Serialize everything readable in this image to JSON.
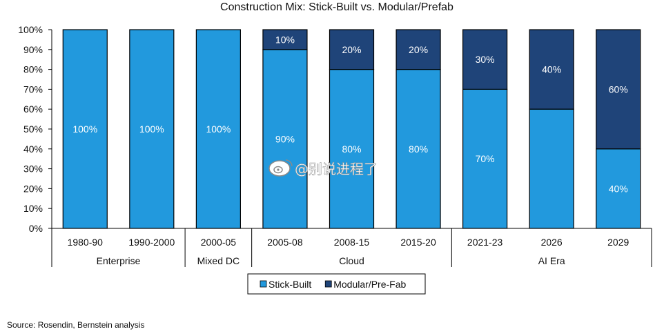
{
  "chart_data": {
    "type": "bar",
    "stacked": true,
    "title": "Construction Mix: Stick-Built vs. Modular/Prefab",
    "categories": [
      "1980-90",
      "1990-2000",
      "2000-05",
      "2005-08",
      "2008-15",
      "2015-20",
      "2021-23",
      "2026",
      "2029"
    ],
    "groups": [
      {
        "label": "Enterprise",
        "start": 0,
        "end": 1
      },
      {
        "label": "Mixed DC",
        "start": 2,
        "end": 2
      },
      {
        "label": "Cloud",
        "start": 3,
        "end": 5
      },
      {
        "label": "AI Era",
        "start": 6,
        "end": 8
      }
    ],
    "series": [
      {
        "name": "Stick-Built",
        "color": "#2299dd",
        "values": [
          100,
          100,
          100,
          90,
          80,
          80,
          70,
          60,
          40
        ],
        "labels": [
          "100%",
          "100%",
          "100%",
          "90%",
          "80%",
          "80%",
          "70%",
          "",
          "40%"
        ]
      },
      {
        "name": "Modular/Pre-Fab",
        "color": "#1f4479",
        "values": [
          0,
          0,
          0,
          10,
          20,
          20,
          30,
          40,
          60
        ],
        "labels": [
          "",
          "",
          "",
          "10%",
          "20%",
          "20%",
          "30%",
          "40%",
          "60%"
        ]
      }
    ],
    "yticks": [
      "0%",
      "10%",
      "20%",
      "30%",
      "40%",
      "50%",
      "60%",
      "70%",
      "80%",
      "90%",
      "100%"
    ],
    "ylim": [
      0,
      100
    ],
    "grid": false,
    "legend_position": "bottom"
  },
  "watermark": "@别说进程了",
  "source": "Source: Rosendin, Bernstein analysis"
}
